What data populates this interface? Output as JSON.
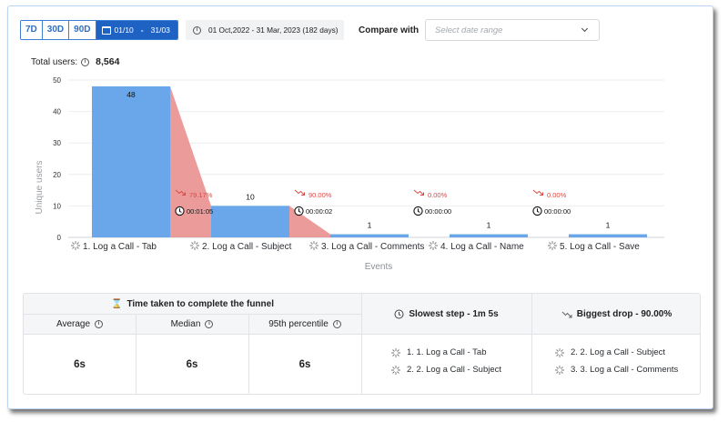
{
  "toolbar": {
    "ranges": [
      "7D",
      "30D",
      "90D"
    ],
    "custom_start": "01/10",
    "custom_end": "31/03",
    "date_info": "01 Oct,2022 - 31 Mar, 2023 (182 days)",
    "compare_label": "Compare with",
    "compare_placeholder": "Select date range"
  },
  "summary": {
    "total_label": "Total users:",
    "total_value": "8,564"
  },
  "colors": {
    "bar": "#6aa6ea",
    "drop_fill": "#e9898a",
    "drop_text": "#d84a44",
    "accent": "#1e63c4"
  },
  "chart_data": {
    "type": "bar",
    "ylabel": "Unique users",
    "xlabel": "Events",
    "ylim": [
      0,
      50
    ],
    "yticks": [
      0,
      10,
      20,
      30,
      40,
      50
    ],
    "categories": [
      "1. Log a Call - Tab",
      "2. Log a Call - Subject",
      "3. Log a Call - Comments",
      "4. Log a Call - Name",
      "5. Log a Call - Save"
    ],
    "values": [
      48,
      10,
      1,
      1,
      1
    ],
    "drops": [
      {
        "percent": "79.17%",
        "time": "00:01:05"
      },
      {
        "percent": "90.00%",
        "time": "00:00:02"
      },
      {
        "percent": "0.00%",
        "time": "00:00:00"
      },
      {
        "percent": "0.00%",
        "time": "00:00:00"
      }
    ],
    "grid": true
  },
  "stats": {
    "time_header": "Time taken to complete the funnel",
    "average_label": "Average",
    "median_label": "Median",
    "p95_label": "95th percentile",
    "average": "6s",
    "median": "6s",
    "p95": "6s",
    "slowest_header": "Slowest step - 1m 5s",
    "slowest_steps": [
      "1. 1. Log a Call - Tab",
      "2. 2. Log a Call - Subject"
    ],
    "drop_header": "Biggest drop - 90.00%",
    "drop_steps": [
      "2. 2. Log a Call - Subject",
      "3. 3. Log a Call - Comments"
    ]
  }
}
